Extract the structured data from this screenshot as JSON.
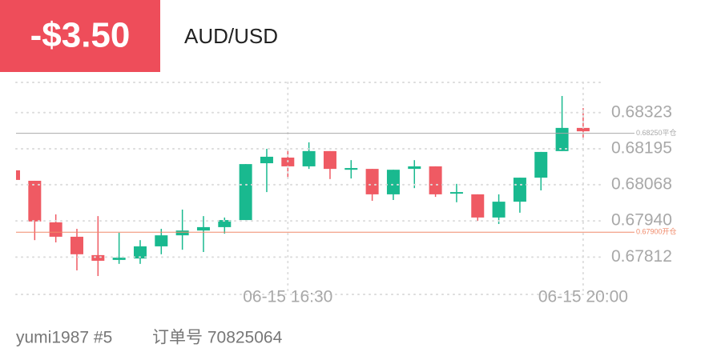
{
  "header": {
    "pnl": "-$3.50",
    "symbol": "AUD/USD"
  },
  "footer": {
    "user": "yumi1987 #5",
    "order": "订单号 70825064"
  },
  "chart_data": {
    "type": "candlestick",
    "categories": [
      null,
      null,
      null,
      null,
      null,
      null,
      null,
      null,
      null,
      null,
      null,
      null,
      null,
      "06-15 16:30",
      null,
      null,
      null,
      null,
      null,
      null,
      null,
      null,
      null,
      null,
      null,
      null,
      null,
      "06-15 20:00"
    ],
    "open": [
      0.68119,
      0.68082,
      0.67935,
      0.67884,
      0.67819,
      0.67802,
      0.67807,
      0.6785,
      0.67889,
      0.67906,
      0.67918,
      0.67943,
      0.68144,
      0.68164,
      0.68133,
      0.68187,
      0.68121,
      0.68124,
      0.68034,
      0.68124,
      0.68133,
      0.68037,
      0.68034,
      0.67952,
      0.68008,
      0.68093,
      0.68187,
      0.68269
    ],
    "high": [
      0.68119,
      0.68082,
      0.67963,
      0.67912,
      0.67957,
      0.67898,
      0.67872,
      0.67912,
      0.6798,
      0.67957,
      0.67952,
      0.68141,
      0.68195,
      0.68189,
      0.68218,
      0.68187,
      0.68155,
      0.68124,
      0.68121,
      0.68155,
      0.68133,
      0.68071,
      0.68034,
      0.68034,
      0.68093,
      0.68184,
      0.68382,
      0.68339
    ],
    "low": [
      0.68085,
      0.67872,
      0.67864,
      0.67765,
      0.67745,
      0.67788,
      0.67788,
      0.67822,
      0.67838,
      0.6783,
      0.67895,
      0.67943,
      0.68042,
      0.6809,
      0.68124,
      0.68088,
      0.6809,
      0.68011,
      0.68014,
      0.68056,
      0.68025,
      0.68006,
      0.6794,
      0.67929,
      0.67969,
      0.68048,
      0.68187,
      0.68235
    ],
    "close": [
      0.68085,
      0.67938,
      0.67884,
      0.67822,
      0.67799,
      0.6781,
      0.6785,
      0.67889,
      0.67906,
      0.67918,
      0.67943,
      0.68141,
      0.68167,
      0.68133,
      0.68187,
      0.68124,
      0.68127,
      0.68034,
      0.68121,
      0.68133,
      0.68034,
      0.68042,
      0.67952,
      0.68008,
      0.68093,
      0.68184,
      0.68269,
      0.68257
    ],
    "up_color": "#19b98f",
    "down_color": "#ef5a63",
    "ylim": [
      0.6768,
      0.6843
    ],
    "yticks": [
      0.67812,
      {
        "value": 0.6794,
        "label": "0.67940"
      },
      0.68068,
      0.68195,
      0.68323
    ],
    "grid": true,
    "lines": [
      {
        "value": 0.6825,
        "label": "0.68250平仓",
        "color": "#a9a9a9"
      },
      {
        "value": 0.679,
        "label": "0.67900开仓",
        "color": "#f08a6a"
      }
    ]
  }
}
